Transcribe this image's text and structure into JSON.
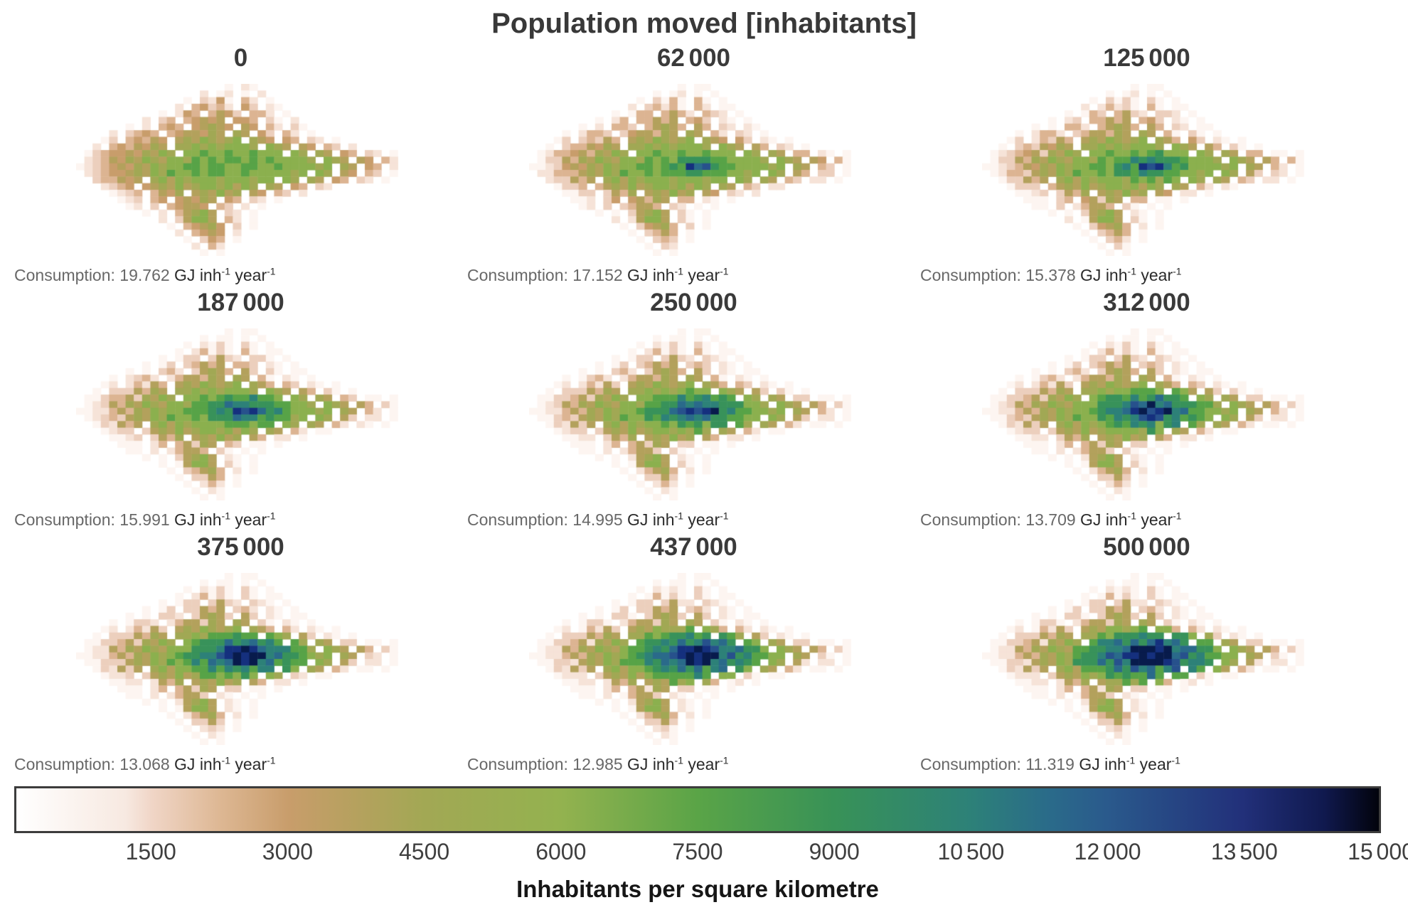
{
  "chart_data": {
    "type": "heatmap",
    "title": "Population moved [inhabitants]",
    "panels": [
      {
        "subtitle": "0",
        "population_moved": 0,
        "consumption_label": "Consumption: 19.762",
        "consumption_GJ_inh_year": 19.762,
        "intensity": 0
      },
      {
        "subtitle": "62 000",
        "population_moved": 62000,
        "consumption_label": "Consumption: 17.152",
        "consumption_GJ_inh_year": 17.152,
        "intensity": 0.125
      },
      {
        "subtitle": "125 000",
        "population_moved": 125000,
        "consumption_label": "Consumption: 15.378",
        "consumption_GJ_inh_year": 15.378,
        "intensity": 0.25
      },
      {
        "subtitle": "187 000",
        "population_moved": 187000,
        "consumption_label": "Consumption: 15.991",
        "consumption_GJ_inh_year": 15.991,
        "intensity": 0.375
      },
      {
        "subtitle": "250 000",
        "population_moved": 250000,
        "consumption_label": "Consumption: 14.995",
        "consumption_GJ_inh_year": 14.995,
        "intensity": 0.5
      },
      {
        "subtitle": "312 000",
        "population_moved": 312000,
        "consumption_label": "Consumption: 13.709",
        "consumption_GJ_inh_year": 13.709,
        "intensity": 0.625
      },
      {
        "subtitle": "375 000",
        "population_moved": 375000,
        "consumption_label": "Consumption: 13.068",
        "consumption_GJ_inh_year": 13.068,
        "intensity": 0.75
      },
      {
        "subtitle": "437 000",
        "population_moved": 437000,
        "consumption_label": "Consumption: 12.985",
        "consumption_GJ_inh_year": 12.985,
        "intensity": 0.875
      },
      {
        "subtitle": "500 000",
        "population_moved": 500000,
        "consumption_label": "Consumption: 11.319",
        "consumption_GJ_inh_year": 11.319,
        "intensity": 1
      }
    ],
    "units": {
      "u1": " GJ inh",
      "sup1": "-1",
      "u2": " year",
      "sup2": "-1"
    },
    "colorbar": {
      "label": "Inhabitants per square kilometre",
      "tick_labels": [
        "1500",
        "3000",
        "4500",
        "6000",
        "7500",
        "9000",
        "10 500",
        "12 000",
        "13 500",
        "15 000"
      ],
      "tick_values": [
        1500,
        3000,
        4500,
        6000,
        7500,
        9000,
        10500,
        12000,
        13500,
        15000
      ],
      "range": [
        0,
        15000
      ],
      "orientation": "horizontal",
      "border_color": "#3c3c3c",
      "gradient": [
        [
          0,
          "#ffffff"
        ],
        [
          0.08,
          "#f7e9e1"
        ],
        [
          0.1,
          "#f0d5c6"
        ],
        [
          0.15,
          "#ddb793"
        ],
        [
          0.2,
          "#c89d6b"
        ],
        [
          0.25,
          "#b5a15e"
        ],
        [
          0.3,
          "#a2a854"
        ],
        [
          0.4,
          "#93b24f"
        ],
        [
          0.5,
          "#5aa447"
        ],
        [
          0.6,
          "#389257"
        ],
        [
          0.7,
          "#2d8178"
        ],
        [
          0.76,
          "#2a6a8a"
        ],
        [
          0.8,
          "#2a5a8c"
        ],
        [
          0.9,
          "#22307a"
        ],
        [
          0.96,
          "#10194e"
        ],
        [
          1,
          "#02030c"
        ]
      ]
    },
    "grid": {
      "cols": 40,
      "rows": 26,
      "palette": [
        "#fdf5f1",
        "#f6e3d8",
        "#eccfbd",
        "#dcb492",
        "#c89d6b",
        "#b3a15c",
        "#a1a854",
        "#8bb04e",
        "#57a347",
        "#38925a",
        "#2d8178",
        "#2a6a8a",
        "#27518c",
        "#15307e",
        "#081b4c"
      ],
      "base_rows": [
        "..................1.21..................",
        "...............2.12.1.2.................",
        ".............1.3251.42.1................",
        "............2.45342.53.21...............",
        "..........1.254.4653.442.1..............",
        "........2.34.45656.554.31.2.............",
        "......1.2.454.56765.65.42.31............",
        "....2.3454.4566576.76.53.42.1...........",
        "...13.45465.67687678.765.54.32.1........",
        "..2.4546576.7787878887.876.65.43.2......",
        ".13455657687.889889889888.87.76.54.32.1.",
        ".2346576876887989899898988887.876.65.42.",
        "1234565768788998998899889888878.76.54.2.",
        ".234556768798898998898888878.87.65.43.1.",
        "..344656.786878887888788.87.76.54.32.1..",
        "...2345.56768678878687.76.54.32.........",
        "....1234.4657.676867.65.43.2............",
        ".....123.45.56576.54.32.1...............",
        "......12.3.45665.43.2.1.................",
        "........1.2.46786.32.1..................",
        "..........2.36886.42.1..................",
        "...........1.45675.3.1..................",
        "............2.4565.2....................",
        ".............1.354.1....................",
        "..............2.42......................",
        "...............1.1......................"
      ]
    }
  }
}
